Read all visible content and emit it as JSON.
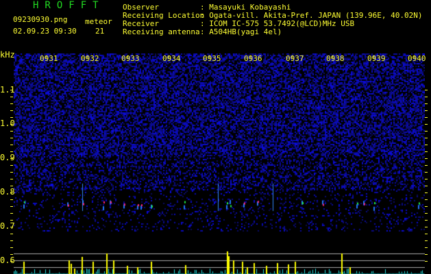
{
  "header": {
    "app_title": "HROFFT",
    "file_name": "09230930.png",
    "datetime": "02.09.23 09:30",
    "meteor_label": "meteor",
    "meteor_count": "21"
  },
  "info": [
    {
      "label": "Observer",
      "value": ": Masayuki Kobayashi"
    },
    {
      "label": "Receiving Location",
      "value": ": Ogata-vill. Akita-Pref. JAPAN (139.96E, 40.02N)"
    },
    {
      "label": "Receiver",
      "value": ": ICOM IC-575 53.7492(@LCD)MHz USB"
    },
    {
      "label": "Receiving antenna",
      "value": ": A504HB(yagi 4el)"
    }
  ],
  "axis": {
    "freq_unit": "kHz",
    "freq_labels": [
      "1.1",
      "1.0",
      "0.9",
      "0.8",
      "0.7",
      "0.6"
    ],
    "time_labels": [
      "0931",
      "0932",
      "0933",
      "0934",
      "0935",
      "0936",
      "0937",
      "0938",
      "0939",
      "0940"
    ]
  },
  "colors": {
    "text": "#ffff33",
    "title": "#22dd22",
    "noise": "#1a1acc",
    "bars_low": "#22e0e0",
    "bars_high": "#ffff00"
  }
}
